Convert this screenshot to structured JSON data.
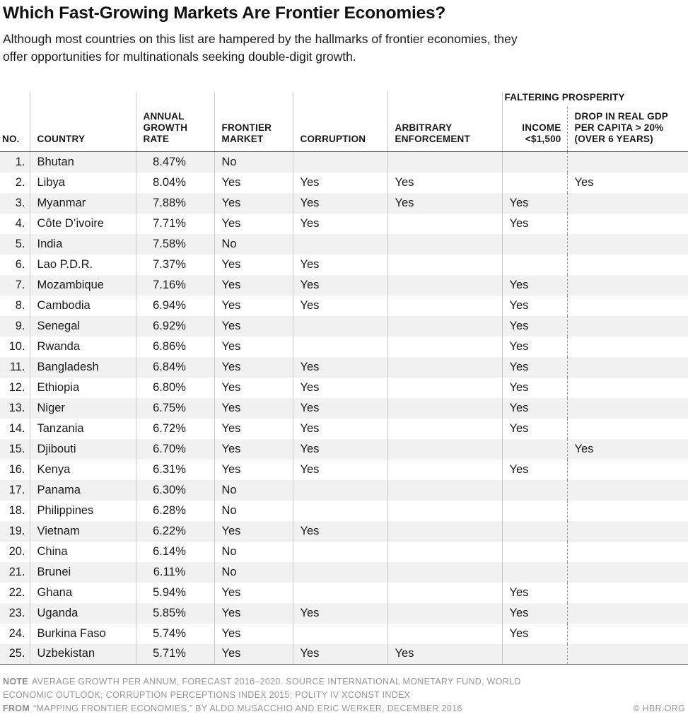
{
  "page": {
    "title": "Which Fast-Growing Markets Are Frontier Economies?",
    "subtitle": "Although most countries on this list are hampered by the hallmarks of frontier economies, they offer opportunities for multinationals seeking double-digit growth."
  },
  "chart_data": {
    "type": "table",
    "group_header": "FALTERING PROSPERITY",
    "group_header_spans_columns": [
      "income",
      "gdp_drop"
    ],
    "columns": [
      {
        "key": "no",
        "label": "NO."
      },
      {
        "key": "country",
        "label": "COUNTRY"
      },
      {
        "key": "growth",
        "label": "ANNUAL\nGROWTH\nRATE"
      },
      {
        "key": "frontier",
        "label": "FRONTIER\nMARKET"
      },
      {
        "key": "corruption",
        "label": "CORRUPTION"
      },
      {
        "key": "arbitrary",
        "label": "ARBITRARY\nENFORCEMENT"
      },
      {
        "key": "income",
        "label": "INCOME\n<$1,500"
      },
      {
        "key": "gdp_drop",
        "label": "DROP IN REAL GDP\nPER CAPITA > 20%\n(OVER 6 YEARS)"
      }
    ],
    "rows": [
      {
        "no": "1.",
        "country": "Bhutan",
        "growth": "8.47%",
        "frontier": "No",
        "corruption": "",
        "arbitrary": "",
        "income": "",
        "gdp_drop": ""
      },
      {
        "no": "2.",
        "country": "Libya",
        "growth": "8.04%",
        "frontier": "Yes",
        "corruption": "Yes",
        "arbitrary": "Yes",
        "income": "",
        "gdp_drop": "Yes"
      },
      {
        "no": "3.",
        "country": "Myanmar",
        "growth": "7.88%",
        "frontier": "Yes",
        "corruption": "Yes",
        "arbitrary": "Yes",
        "income": "Yes",
        "gdp_drop": ""
      },
      {
        "no": "4.",
        "country": "Côte D’ivoire",
        "growth": "7.71%",
        "frontier": "Yes",
        "corruption": "Yes",
        "arbitrary": "",
        "income": "Yes",
        "gdp_drop": ""
      },
      {
        "no": "5.",
        "country": "India",
        "growth": "7.58%",
        "frontier": "No",
        "corruption": "",
        "arbitrary": "",
        "income": "",
        "gdp_drop": ""
      },
      {
        "no": "6.",
        "country": "Lao P.D.R.",
        "growth": "7.37%",
        "frontier": "Yes",
        "corruption": "Yes",
        "arbitrary": "",
        "income": "",
        "gdp_drop": ""
      },
      {
        "no": "7.",
        "country": "Mozambique",
        "growth": "7.16%",
        "frontier": "Yes",
        "corruption": "Yes",
        "arbitrary": "",
        "income": "Yes",
        "gdp_drop": ""
      },
      {
        "no": "8.",
        "country": "Cambodia",
        "growth": "6.94%",
        "frontier": "Yes",
        "corruption": "Yes",
        "arbitrary": "",
        "income": "Yes",
        "gdp_drop": ""
      },
      {
        "no": "9.",
        "country": "Senegal",
        "growth": "6.92%",
        "frontier": "Yes",
        "corruption": "",
        "arbitrary": "",
        "income": "Yes",
        "gdp_drop": ""
      },
      {
        "no": "10.",
        "country": "Rwanda",
        "growth": "6.86%",
        "frontier": "Yes",
        "corruption": "",
        "arbitrary": "",
        "income": "Yes",
        "gdp_drop": ""
      },
      {
        "no": "11.",
        "country": "Bangladesh",
        "growth": "6.84%",
        "frontier": "Yes",
        "corruption": "Yes",
        "arbitrary": "",
        "income": "Yes",
        "gdp_drop": ""
      },
      {
        "no": "12.",
        "country": "Ethiopia",
        "growth": "6.80%",
        "frontier": "Yes",
        "corruption": "Yes",
        "arbitrary": "",
        "income": "Yes",
        "gdp_drop": ""
      },
      {
        "no": "13.",
        "country": "Niger",
        "growth": "6.75%",
        "frontier": "Yes",
        "corruption": "Yes",
        "arbitrary": "",
        "income": "Yes",
        "gdp_drop": ""
      },
      {
        "no": "14.",
        "country": "Tanzania",
        "growth": "6.72%",
        "frontier": "Yes",
        "corruption": "Yes",
        "arbitrary": "",
        "income": "Yes",
        "gdp_drop": ""
      },
      {
        "no": "15.",
        "country": "Djibouti",
        "growth": "6.70%",
        "frontier": "Yes",
        "corruption": "Yes",
        "arbitrary": "",
        "income": "",
        "gdp_drop": "Yes"
      },
      {
        "no": "16.",
        "country": "Kenya",
        "growth": "6.31%",
        "frontier": "Yes",
        "corruption": "Yes",
        "arbitrary": "",
        "income": "Yes",
        "gdp_drop": ""
      },
      {
        "no": "17.",
        "country": "Panama",
        "growth": "6.30%",
        "frontier": "No",
        "corruption": "",
        "arbitrary": "",
        "income": "",
        "gdp_drop": ""
      },
      {
        "no": "18.",
        "country": "Philippines",
        "growth": "6.28%",
        "frontier": "No",
        "corruption": "",
        "arbitrary": "",
        "income": "",
        "gdp_drop": ""
      },
      {
        "no": "19.",
        "country": "Vietnam",
        "growth": "6.22%",
        "frontier": "Yes",
        "corruption": "Yes",
        "arbitrary": "",
        "income": "",
        "gdp_drop": ""
      },
      {
        "no": "20.",
        "country": "China",
        "growth": "6.14%",
        "frontier": "No",
        "corruption": "",
        "arbitrary": "",
        "income": "",
        "gdp_drop": ""
      },
      {
        "no": "21.",
        "country": "Brunei",
        "growth": "6.11%",
        "frontier": "No",
        "corruption": "",
        "arbitrary": "",
        "income": "",
        "gdp_drop": ""
      },
      {
        "no": "22.",
        "country": "Ghana",
        "growth": "5.94%",
        "frontier": "Yes",
        "corruption": "",
        "arbitrary": "",
        "income": "Yes",
        "gdp_drop": ""
      },
      {
        "no": "23.",
        "country": "Uganda",
        "growth": "5.85%",
        "frontier": "Yes",
        "corruption": "Yes",
        "arbitrary": "",
        "income": "Yes",
        "gdp_drop": ""
      },
      {
        "no": "24.",
        "country": "Burkina Faso",
        "growth": "5.74%",
        "frontier": "Yes",
        "corruption": "",
        "arbitrary": "",
        "income": "Yes",
        "gdp_drop": ""
      },
      {
        "no": "25.",
        "country": "Uzbekistan",
        "growth": "5.71%",
        "frontier": "Yes",
        "corruption": "Yes",
        "arbitrary": "Yes",
        "income": "",
        "gdp_drop": ""
      }
    ]
  },
  "footer": {
    "note_label": "NOTE",
    "note_text": "AVERAGE GROWTH PER ANNUM, FORECAST 2016–2020. SOURCE INTERNATIONAL MONETARY FUND, WORLD ECONOMIC OUTLOOK; CORRUPTION PERCEPTIONS INDEX 2015; POLITY IV XCONST INDEX",
    "from_label": "FROM",
    "from_text": "“MAPPING FRONTIER ECONOMIES,” BY ALDO MUSACCHIO AND ERIC WERKER, DECEMBER 2016",
    "copyright": "© HBR.ORG"
  }
}
